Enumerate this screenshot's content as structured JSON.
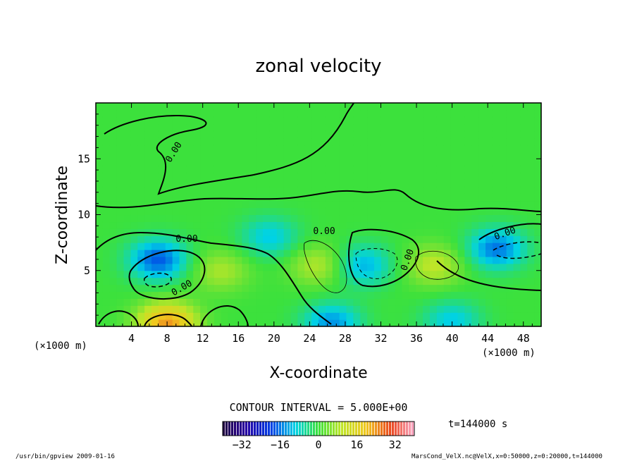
{
  "chart_data": {
    "type": "heatmap",
    "title": "zonal velocity",
    "xlabel": "X-coordinate",
    "ylabel": "Z-coordinate",
    "x_unit_label": "(×1000 m)",
    "x_unit_label_right": "(×1000 m)",
    "xlim": [
      0,
      50
    ],
    "ylim": [
      0,
      20
    ],
    "x_ticks": [
      4,
      8,
      12,
      16,
      20,
      24,
      28,
      32,
      36,
      40,
      44,
      48
    ],
    "y_ticks": [
      5,
      10,
      15
    ],
    "contour_interval_text": "CONTOUR INTERVAL = 5.000E+00",
    "contour_labels": [
      "0.00",
      "0.00",
      "0.00",
      "0.00",
      "0.00",
      "0.00",
      "0.00"
    ],
    "colorbar": {
      "range": [
        -40,
        40
      ],
      "ticks": [
        -32,
        -16,
        0,
        16,
        32
      ]
    },
    "time_label": "t=144000 s",
    "footer_left": "/usr/bin/gpview   2009-01-16",
    "footer_right": "MarsCond_VelX.nc@VelX,x=0:50000,z=0:20000,t=144000",
    "features": [
      {
        "x": 7,
        "z": 6,
        "sign": -1,
        "strength": 18
      },
      {
        "x": 19.5,
        "z": 8,
        "sign": -1,
        "strength": 10
      },
      {
        "x": 30,
        "z": 5.5,
        "sign": -1,
        "strength": 12
      },
      {
        "x": 45,
        "z": 7,
        "sign": -1,
        "strength": 16
      },
      {
        "x": 14,
        "z": 5,
        "sign": 1,
        "strength": 8
      },
      {
        "x": 25,
        "z": 5.5,
        "sign": 1,
        "strength": 9
      },
      {
        "x": 38,
        "z": 5.5,
        "sign": 1,
        "strength": 10
      },
      {
        "x": 8,
        "z": 0.3,
        "sign": 1,
        "strength": 24
      },
      {
        "x": 26.5,
        "z": 0.3,
        "sign": -1,
        "strength": 14
      },
      {
        "x": 40,
        "z": 0.5,
        "sign": -1,
        "strength": 10
      }
    ]
  }
}
